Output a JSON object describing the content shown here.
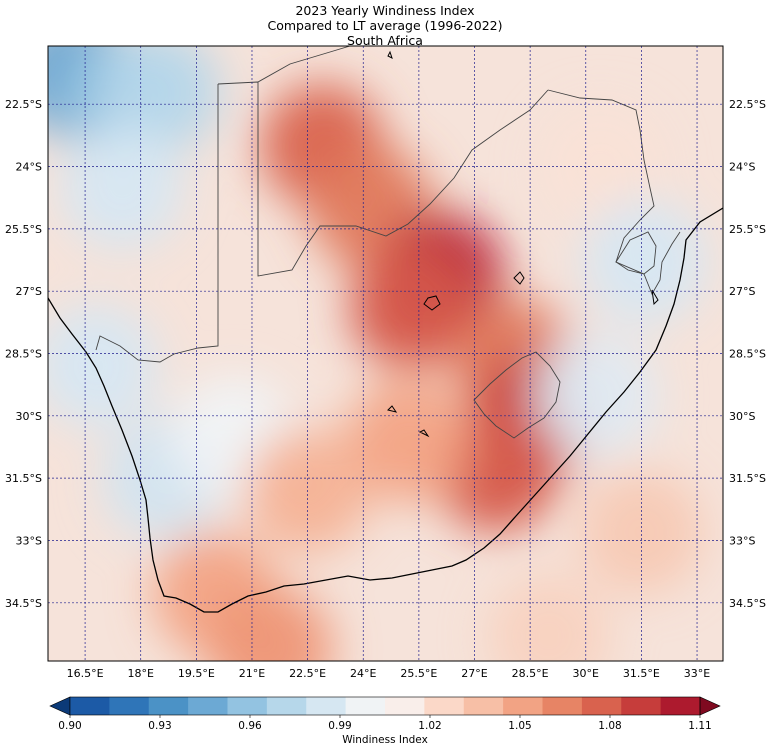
{
  "title": {
    "line1": "2023 Yearly Windiness Index",
    "line2": "Compared to LT average (1996-2022)",
    "line3": "South Africa"
  },
  "map": {
    "lat_labels": [
      "22.5°S",
      "24°S",
      "25.5°S",
      "27°S",
      "28.5°S",
      "30°S",
      "31.5°S",
      "33°S",
      "34.5°S"
    ],
    "lon_labels": [
      "16.5°E",
      "18°E",
      "19.5°E",
      "21°E",
      "22.5°E",
      "24°E",
      "25.5°E",
      "27°E",
      "28.5°E",
      "30°E",
      "31.5°E",
      "33°E"
    ],
    "lat_values": [
      -22.5,
      -24,
      -25.5,
      -27,
      -28.5,
      -30,
      -31.5,
      -33,
      -34.5
    ],
    "lon_values": [
      16.5,
      18,
      19.5,
      21,
      22.5,
      24,
      25.5,
      27,
      28.5,
      30,
      31.5,
      33
    ],
    "extent": {
      "lon_min": 15.5,
      "lon_max": 33.7,
      "lat_min": -35.9,
      "lat_max": -21.1
    },
    "gridline_color": "#1f1f8f"
  },
  "colorbar": {
    "label": "Windiness Index",
    "ticks": [
      "0.90",
      "0.93",
      "0.96",
      "0.99",
      "1.02",
      "1.05",
      "1.08",
      "1.11"
    ],
    "min": 0.9,
    "max": 1.11,
    "colors": [
      "#0b3a78",
      "#1c5aa6",
      "#2f75b8",
      "#4b92c6",
      "#6ca9d4",
      "#93c3e1",
      "#b6d7ea",
      "#d6e7f2",
      "#f0f3f5",
      "#f9eeea",
      "#fbd8c8",
      "#f7bfa6",
      "#f2a384",
      "#e78465",
      "#d9624e",
      "#c63d3b",
      "#ad1a2e",
      "#7f0a20"
    ]
  },
  "field": {
    "base_color": "#f6e3da",
    "blobs": [
      {
        "lon": 16.2,
        "lat": -21.8,
        "color": "#5f9fcf"
      },
      {
        "lon": 17.3,
        "lat": -22.3,
        "color": "#8fbfde"
      },
      {
        "lon": 18.5,
        "lat": -22.2,
        "color": "#b6d7ea"
      },
      {
        "lon": 17.5,
        "lat": -24.5,
        "color": "#d6e7f2"
      },
      {
        "lon": 16.8,
        "lat": -28.8,
        "color": "#d6e7f2"
      },
      {
        "lon": 18.6,
        "lat": -31.5,
        "color": "#d2e4f0"
      },
      {
        "lon": 20.5,
        "lat": -30.5,
        "color": "#f0f3f5"
      },
      {
        "lon": 22.9,
        "lat": -23.5,
        "color": "#d9624e"
      },
      {
        "lon": 24.2,
        "lat": -25.0,
        "color": "#e07a5d"
      },
      {
        "lon": 26.1,
        "lat": -26.6,
        "color": "#b9253a"
      },
      {
        "lon": 25.3,
        "lat": -27.4,
        "color": "#d5584a"
      },
      {
        "lon": 28.1,
        "lat": -28.7,
        "color": "#e07a5d"
      },
      {
        "lon": 28.6,
        "lat": -30.0,
        "color": "#c63d3b"
      },
      {
        "lon": 27.6,
        "lat": -31.3,
        "color": "#d5584a"
      },
      {
        "lon": 25.2,
        "lat": -30.6,
        "color": "#f2a384"
      },
      {
        "lon": 22.5,
        "lat": -31.8,
        "color": "#f4b296"
      },
      {
        "lon": 20.0,
        "lat": -34.3,
        "color": "#f2a384"
      },
      {
        "lon": 21.5,
        "lat": -35.6,
        "color": "#ee9676"
      },
      {
        "lon": 30.4,
        "lat": -24.0,
        "color": "#f9e2d6"
      },
      {
        "lon": 31.6,
        "lat": -26.3,
        "color": "#d6e7f2"
      },
      {
        "lon": 30.3,
        "lat": -29.5,
        "color": "#dfeaf2"
      },
      {
        "lon": 31.5,
        "lat": -32.8,
        "color": "#f7c9b4"
      },
      {
        "lon": 29.0,
        "lat": -35.3,
        "color": "#f8d2c0"
      }
    ]
  }
}
